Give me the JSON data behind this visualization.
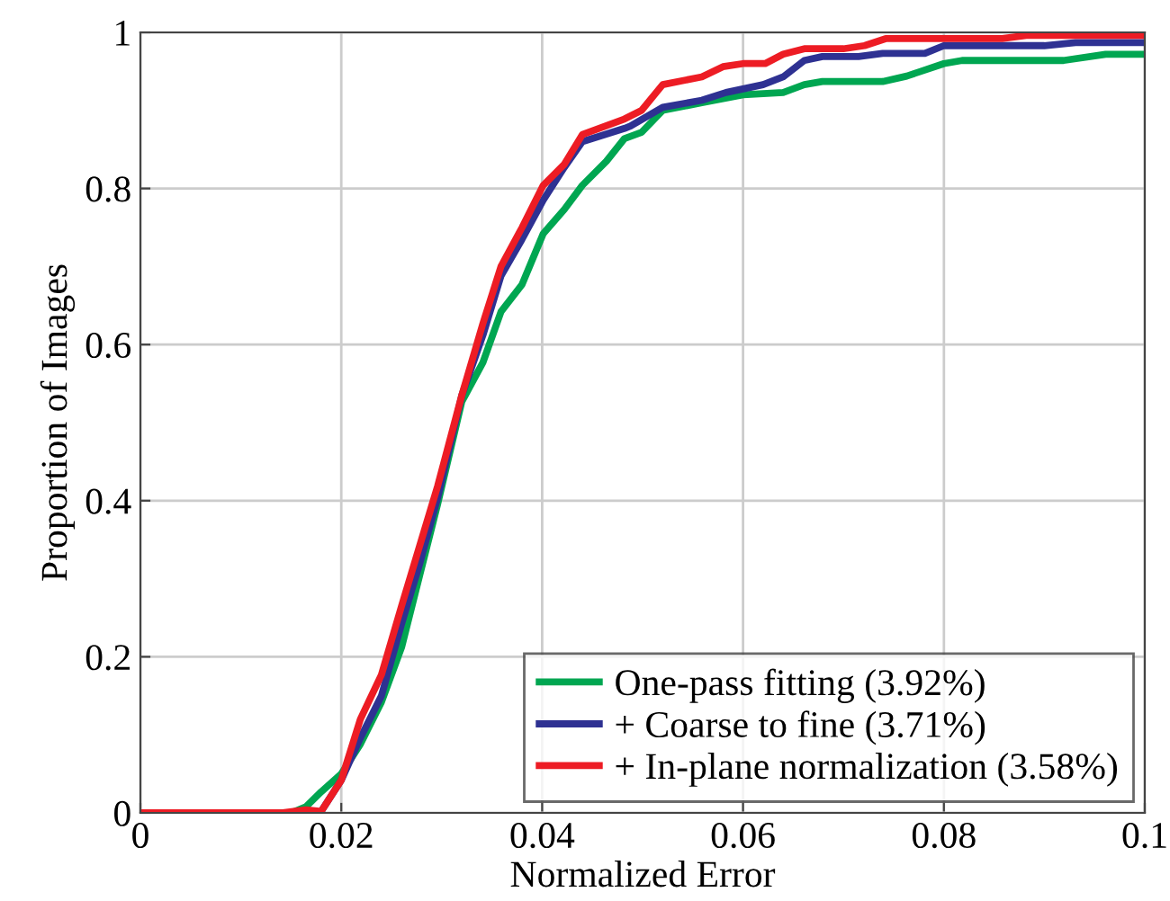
{
  "chart_data": {
    "type": "line",
    "xlabel": "Normalized Error",
    "ylabel": "Proportion of Images",
    "xlim": [
      0,
      0.1
    ],
    "ylim": [
      0,
      1
    ],
    "xticks": [
      {
        "value": 0,
        "label": "0"
      },
      0.02,
      0.04,
      0.06,
      0.08,
      0.1
    ],
    "yticks": [
      {
        "value": 0,
        "label": "0"
      },
      0.2,
      0.4,
      0.6,
      0.8,
      {
        "value": 1,
        "label": "1"
      }
    ],
    "grid": true,
    "legend": "bottom right",
    "marker": "none",
    "line_style": "solid",
    "series": [
      {
        "name": "One-pass fitting (3.92%)",
        "color": "#00a651",
        "x": [
          0,
          0.015,
          0.0165,
          0.018,
          0.02,
          0.0219,
          0.024,
          0.026,
          0.0278,
          0.0296,
          0.032,
          0.0341,
          0.0359,
          0.038,
          0.0401,
          0.0422,
          0.044,
          0.0464,
          0.0482,
          0.0499,
          0.052,
          0.0559,
          0.06,
          0.064,
          0.0661,
          0.0679,
          0.0739,
          0.0763,
          0.08,
          0.0818,
          0.0919,
          0.0961,
          0.1
        ],
        "values": [
          0,
          0,
          0.008,
          0.027,
          0.05,
          0.088,
          0.142,
          0.212,
          0.304,
          0.396,
          0.527,
          0.577,
          0.642,
          0.677,
          0.742,
          0.773,
          0.804,
          0.835,
          0.864,
          0.872,
          0.9,
          0.91,
          0.92,
          0.923,
          0.933,
          0.937,
          0.937,
          0.944,
          0.96,
          0.964,
          0.964,
          0.972,
          0.972
        ]
      },
      {
        "name": "+ Coarse to fine (3.71%)",
        "color": "#2e3192",
        "x": [
          0.018,
          0.02,
          0.0219,
          0.024,
          0.026,
          0.0278,
          0.0296,
          0.032,
          0.0341,
          0.0359,
          0.038,
          0.0401,
          0.0422,
          0.044,
          0.0482,
          0.0488,
          0.052,
          0.0559,
          0.0583,
          0.062,
          0.064,
          0.0661,
          0.0679,
          0.0715,
          0.0739,
          0.0781,
          0.08,
          0.09,
          0.0931,
          0.1
        ],
        "values": [
          0.002,
          0.042,
          0.096,
          0.15,
          0.242,
          0.319,
          0.404,
          0.535,
          0.612,
          0.688,
          0.735,
          0.785,
          0.827,
          0.86,
          0.877,
          0.88,
          0.904,
          0.913,
          0.923,
          0.933,
          0.943,
          0.964,
          0.969,
          0.969,
          0.973,
          0.973,
          0.983,
          0.983,
          0.987,
          0.987
        ]
      },
      {
        "name": "+ In-plane normalization (3.58%)",
        "color": "#ed1c24",
        "x": [
          0,
          0.014,
          0.0165,
          0.018,
          0.02,
          0.0219,
          0.024,
          0.026,
          0.0278,
          0.0296,
          0.032,
          0.0341,
          0.0359,
          0.038,
          0.0401,
          0.0422,
          0.044,
          0.0482,
          0.0499,
          0.052,
          0.0559,
          0.058,
          0.06,
          0.0622,
          0.064,
          0.0661,
          0.07,
          0.0721,
          0.0742,
          0.0858,
          0.0882,
          0.1
        ],
        "values": [
          0,
          0,
          0.004,
          0.002,
          0.042,
          0.12,
          0.177,
          0.265,
          0.342,
          0.419,
          0.535,
          0.627,
          0.7,
          0.75,
          0.804,
          0.831,
          0.869,
          0.889,
          0.9,
          0.933,
          0.943,
          0.956,
          0.96,
          0.96,
          0.972,
          0.979,
          0.979,
          0.983,
          0.992,
          0.992,
          0.996,
          0.996
        ]
      }
    ]
  }
}
